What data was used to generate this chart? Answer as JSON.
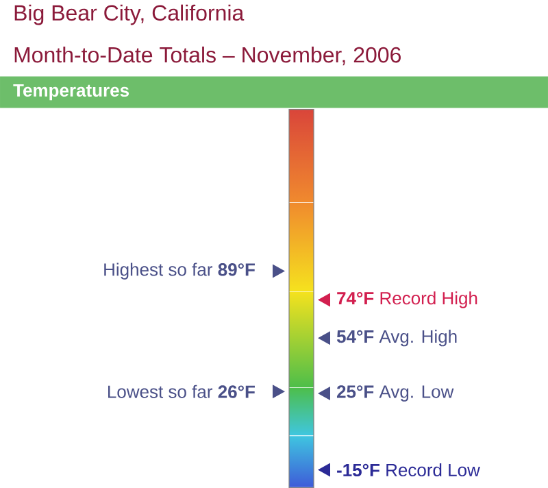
{
  "chart_data": {
    "type": "other",
    "title": "Big Bear City, California",
    "subtitle": "Month-to-Date Totals – November, 2006",
    "annotations": [
      "Temperatures"
    ],
    "series": [
      {
        "name": "Highest so far",
        "values": [
          89
        ],
        "value_labels": [
          "89°F"
        ],
        "color": "#4a5088",
        "axis": "y"
      },
      {
        "name": "Record High",
        "values": [
          74
        ],
        "value_labels": [
          "74°F"
        ],
        "color": "#d21f4f",
        "axis": "y2"
      },
      {
        "name": "Avg. High",
        "values": [
          54
        ],
        "value_labels": [
          "54°F"
        ],
        "color": "#4a5088",
        "axis": "y2"
      },
      {
        "name": "Lowest so far",
        "values": [
          26
        ],
        "value_labels": [
          "26°F"
        ],
        "color": "#4a5088",
        "axis": "y"
      },
      {
        "name": "Avg. Low",
        "values": [
          25
        ],
        "value_labels": [
          "25°F"
        ],
        "color": "#4a5088",
        "axis": "y2"
      },
      {
        "name": "Record Low",
        "values": [
          -15
        ],
        "value_labels": [
          "-15°F"
        ],
        "color": "#2b2a96",
        "axis": "y2"
      }
    ]
  }
}
